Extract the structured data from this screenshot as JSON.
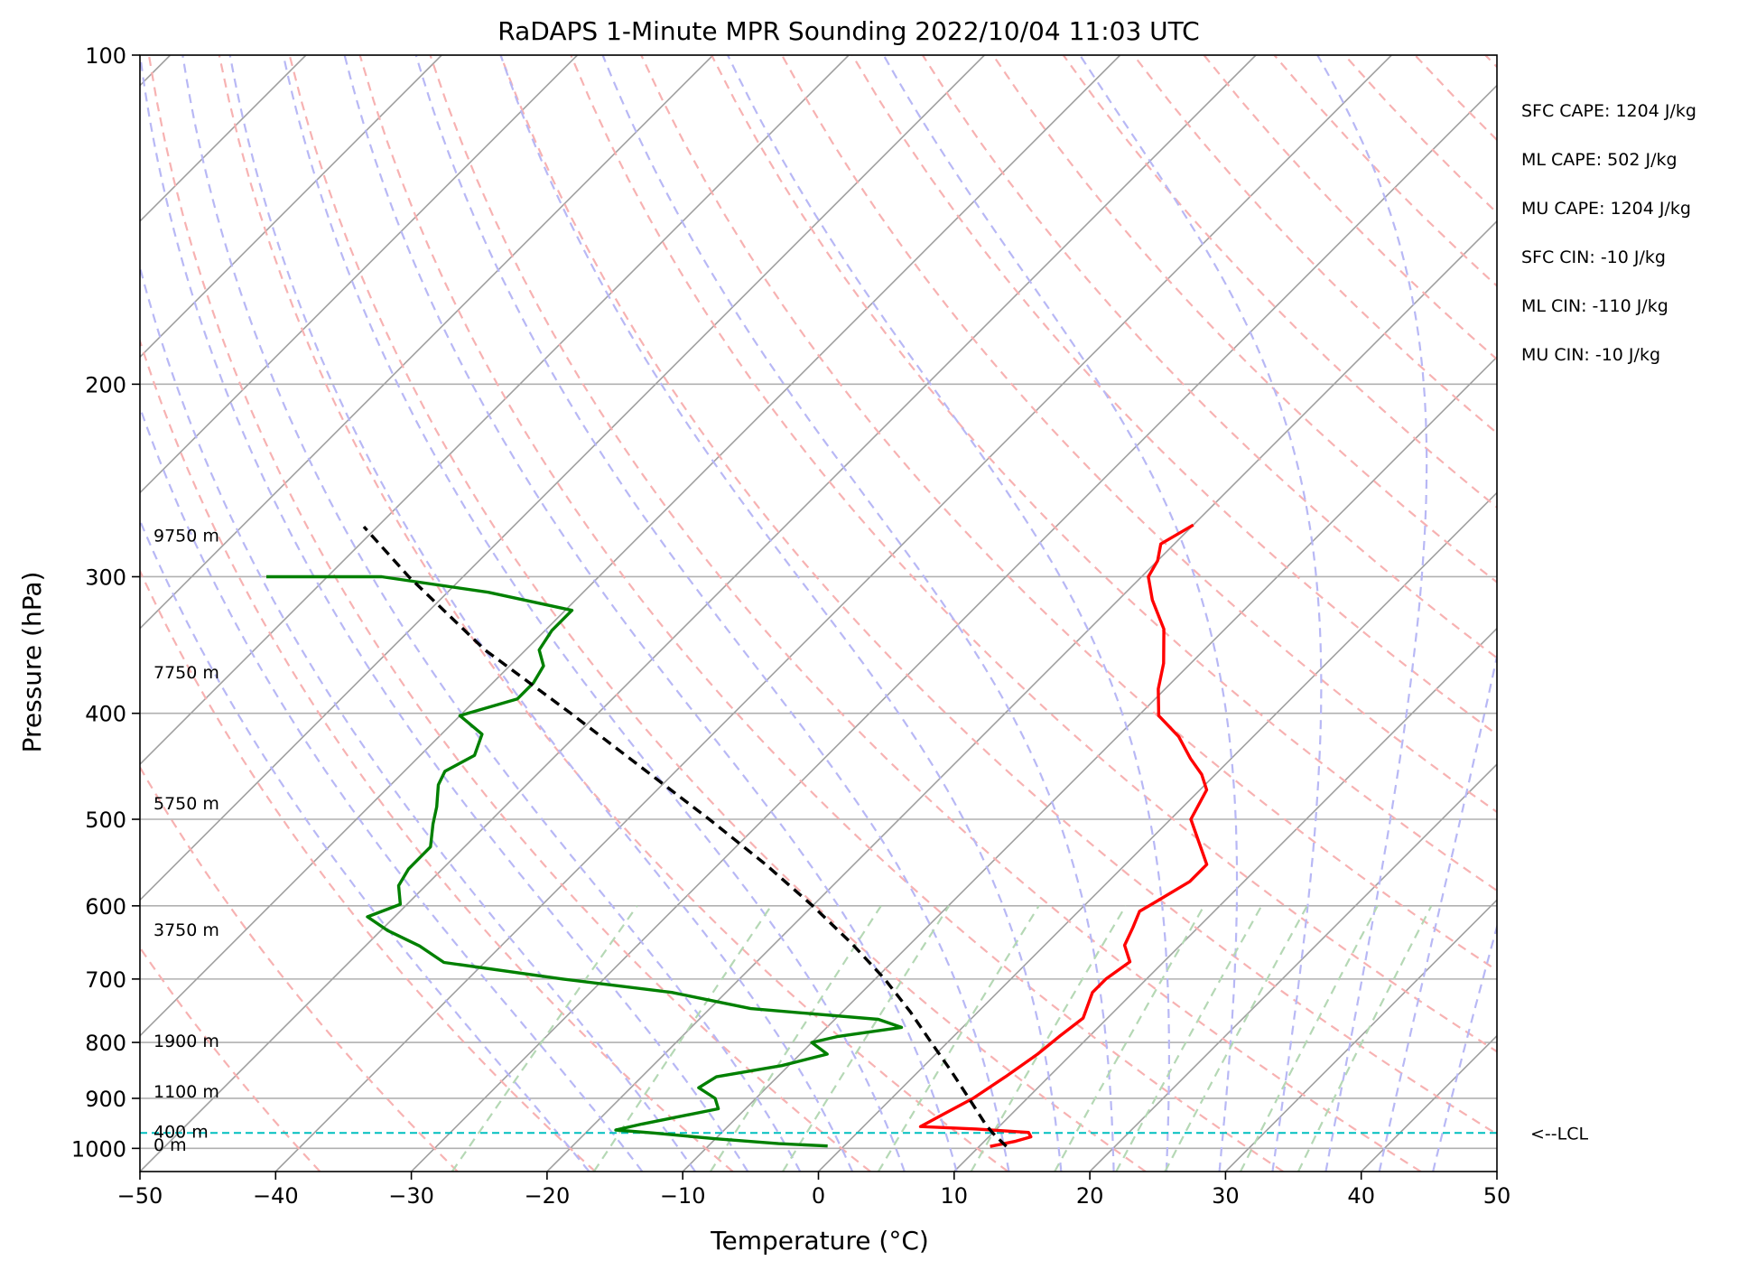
{
  "chart_data": {
    "type": "line",
    "chart_kind": "skew-T log-p sounding",
    "title": "RaDAPS 1-Minute MPR Sounding 2022/10/04 11:03 UTC",
    "xlabel": "Temperature (°C)",
    "ylabel": "Pressure (hPa)",
    "xlim": [
      -50,
      50
    ],
    "ylim": [
      1050,
      100
    ],
    "y_scale": "log",
    "x_ticks": [
      -50,
      -40,
      -30,
      -20,
      -10,
      0,
      10,
      20,
      30,
      40,
      50
    ],
    "x_tick_labels": [
      "−50",
      "−40",
      "−30",
      "−20",
      "−10",
      "0",
      "10",
      "20",
      "30",
      "40",
      "50"
    ],
    "y_ticks": [
      100,
      200,
      300,
      400,
      500,
      600,
      700,
      800,
      900,
      1000
    ],
    "y_tick_labels": [
      "100",
      "200",
      "300",
      "400",
      "500",
      "600",
      "700",
      "800",
      "900",
      "1000"
    ],
    "grid": true,
    "skew_deg": 45,
    "background_lines": {
      "isotherms": {
        "color": "#a0a0a0",
        "style": "solid"
      },
      "dry_adiabats": {
        "color": "#f7b2b2",
        "style": "dashed"
      },
      "moist_adiabats": {
        "color": "#b8b8f5",
        "style": "dashed"
      },
      "mixing_ratio": {
        "color": "#b5d8b5",
        "style": "dashed"
      }
    },
    "series": [
      {
        "role": "temperature",
        "color": "#ff0000",
        "points": [
          [
            996,
            10.8
          ],
          [
            985,
            12.3
          ],
          [
            976,
            13.1
          ],
          [
            967,
            12.6
          ],
          [
            960,
            8.5
          ],
          [
            955,
            4.2
          ],
          [
            930,
            5.0
          ],
          [
            900,
            6.0
          ],
          [
            860,
            6.8
          ],
          [
            820,
            7.5
          ],
          [
            790,
            7.8
          ],
          [
            760,
            8.2
          ],
          [
            720,
            7.0
          ],
          [
            700,
            7.0
          ],
          [
            675,
            7.5
          ],
          [
            652,
            5.9
          ],
          [
            628,
            5.2
          ],
          [
            607,
            4.5
          ],
          [
            595,
            5.0
          ],
          [
            570,
            6.0
          ],
          [
            550,
            6.0
          ],
          [
            500,
            1.5
          ],
          [
            470,
            0.5
          ],
          [
            455,
            -1.0
          ],
          [
            440,
            -3.0
          ],
          [
            420,
            -5.5
          ],
          [
            402,
            -8.5
          ],
          [
            380,
            -10.5
          ],
          [
            360,
            -12.0
          ],
          [
            335,
            -14.5
          ],
          [
            315,
            -17.5
          ],
          [
            300,
            -19.5
          ],
          [
            290,
            -20.0
          ],
          [
            280,
            -21.0
          ],
          [
            269,
            -20.0
          ]
        ]
      },
      {
        "role": "dewpoint",
        "color": "#008000",
        "points": [
          [
            995,
            -1.2
          ],
          [
            990,
            -5.0
          ],
          [
            980,
            -10.0
          ],
          [
            968,
            -15.0
          ],
          [
            962,
            -18.0
          ],
          [
            950,
            -16.5
          ],
          [
            920,
            -12.0
          ],
          [
            900,
            -13.0
          ],
          [
            880,
            -15.0
          ],
          [
            860,
            -14.5
          ],
          [
            840,
            -10.5
          ],
          [
            820,
            -8.0
          ],
          [
            800,
            -10.0
          ],
          [
            790,
            -8.5
          ],
          [
            775,
            -4.5
          ],
          [
            762,
            -6.8
          ],
          [
            745,
            -17.0
          ],
          [
            720,
            -24.0
          ],
          [
            700,
            -33.0
          ],
          [
            676,
            -43.0
          ],
          [
            653,
            -46.0
          ],
          [
            632,
            -49.5
          ],
          [
            614,
            -52.0
          ],
          [
            598,
            -50.5
          ],
          [
            575,
            -52.0
          ],
          [
            555,
            -52.5
          ],
          [
            530,
            -52.5
          ],
          [
            505,
            -54.0
          ],
          [
            487,
            -55.0
          ],
          [
            465,
            -56.5
          ],
          [
            452,
            -57.0
          ],
          [
            437,
            -56.0
          ],
          [
            418,
            -57.0
          ],
          [
            402,
            -60.0
          ],
          [
            388,
            -57.0
          ],
          [
            375,
            -57.0
          ],
          [
            362,
            -57.5
          ],
          [
            350,
            -59.0
          ],
          [
            336,
            -59.5
          ],
          [
            322,
            -59.5
          ],
          [
            310,
            -67.0
          ],
          [
            300,
            -76.0
          ],
          [
            300,
            -84.5
          ]
        ]
      },
      {
        "role": "parcel",
        "color": "#000000",
        "style": "dashed",
        "points": [
          [
            996,
            12.0
          ],
          [
            968,
            10.0
          ],
          [
            950,
            8.8
          ],
          [
            900,
            5.7
          ],
          [
            850,
            2.4
          ],
          [
            800,
            -1.2
          ],
          [
            750,
            -5.0
          ],
          [
            700,
            -9.3
          ],
          [
            650,
            -14.3
          ],
          [
            600,
            -20.0
          ],
          [
            550,
            -26.5
          ],
          [
            500,
            -34.0
          ],
          [
            450,
            -42.5
          ],
          [
            400,
            -52.0
          ],
          [
            350,
            -63.0
          ],
          [
            300,
            -74.0
          ],
          [
            270,
            -81.0
          ]
        ]
      }
    ],
    "lcl": {
      "pressure": 968,
      "label": "<--LCL",
      "color": "#00bfbf",
      "style": "dashed"
    },
    "height_labels": [
      {
        "pressure": 996,
        "label": "0 m"
      },
      {
        "pressure": 968,
        "label": "400 m"
      },
      {
        "pressure": 890,
        "label": "1100 m"
      },
      {
        "pressure": 800,
        "label": "1900 m"
      },
      {
        "pressure": 633,
        "label": "3750 m"
      },
      {
        "pressure": 485,
        "label": "5750 m"
      },
      {
        "pressure": 368,
        "label": "7750 m"
      },
      {
        "pressure": 276,
        "label": "9750 m"
      }
    ],
    "stats": [
      "SFC CAPE: 1204 J/kg",
      "ML CAPE: 502 J/kg",
      "MU CAPE: 1204 J/kg",
      "SFC CIN: -10 J/kg",
      "ML CIN: -110 J/kg",
      "MU CIN: -10 J/kg"
    ]
  }
}
